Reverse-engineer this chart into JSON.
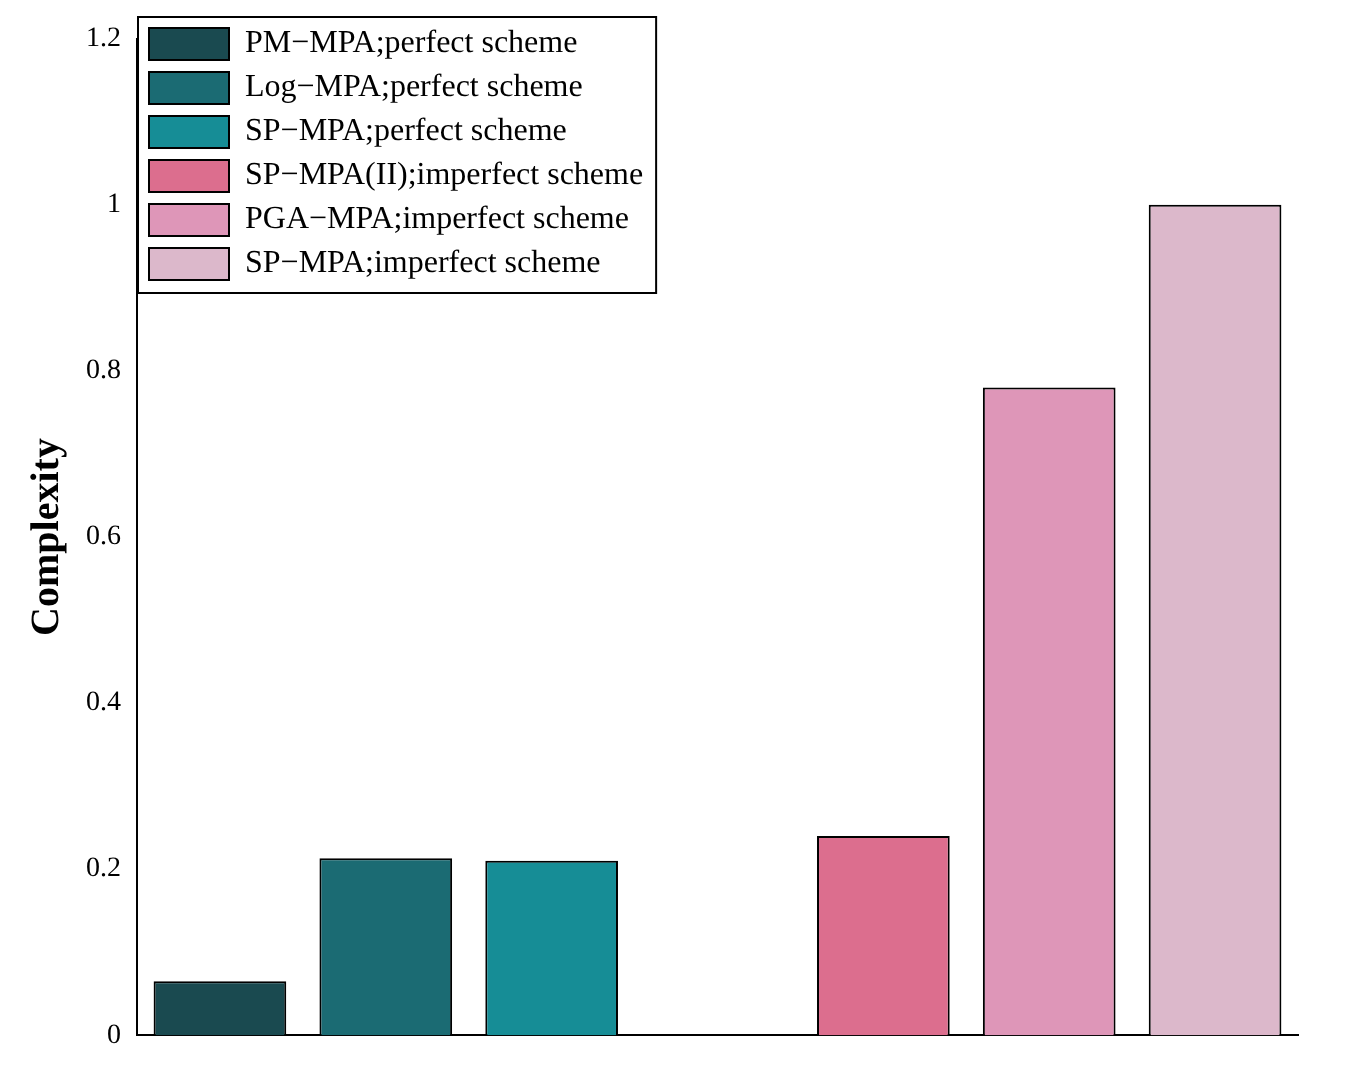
{
  "chart_data": {
    "type": "bar",
    "ylabel": "Complexity",
    "categories": [
      null,
      null,
      null,
      null,
      null,
      null,
      null
    ],
    "series": [
      {
        "name": "PM−MPA;perfect scheme",
        "color": "#1a4a50",
        "values": [
          0.065,
          null,
          null,
          null,
          null,
          null,
          null
        ]
      },
      {
        "name": "Log−MPA;perfect scheme",
        "color": "#1b6b73",
        "values": [
          null,
          0.213,
          null,
          null,
          null,
          null,
          null
        ]
      },
      {
        "name": "SP−MPA;perfect scheme",
        "color": "#168d96",
        "values": [
          null,
          null,
          0.21,
          null,
          null,
          null,
          null
        ]
      },
      {
        "name": "SP−MPA(II);imperfect scheme",
        "color": "#dc6e8e",
        "values": [
          null,
          null,
          null,
          null,
          0.24,
          null,
          null
        ]
      },
      {
        "name": "PGA−MPA;imperfect scheme",
        "color": "#de96b8",
        "values": [
          null,
          null,
          null,
          null,
          null,
          0.78,
          null
        ]
      },
      {
        "name": "SP−MPA;imperfect scheme",
        "color": "#dcb8cb",
        "values": [
          null,
          null,
          null,
          null,
          null,
          null,
          1.0
        ]
      }
    ],
    "ylim": [
      0,
      1.2
    ],
    "yticks": [
      0,
      0.2,
      0.4,
      0.6,
      0.8,
      1,
      1.2
    ],
    "grid": false,
    "legend": "top left",
    "tick_labels": "y"
  }
}
